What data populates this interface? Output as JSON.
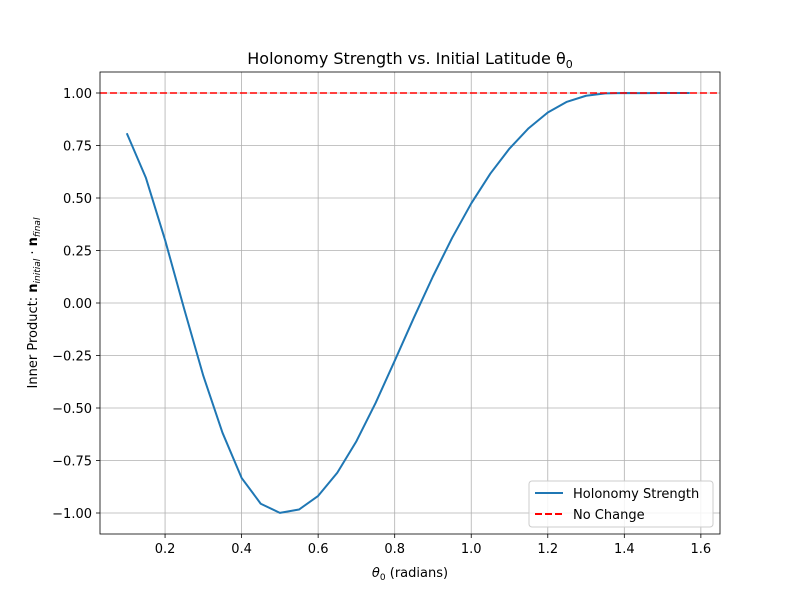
{
  "chart_data": {
    "type": "line",
    "title": {
      "text": "Holonomy Strength vs. Initial Latitude θ",
      "sub": "0"
    },
    "xlabel": {
      "pre": "θ",
      "sub": "0",
      "post": " (radians)"
    },
    "ylabel": {
      "prefix": "Inner Product: ",
      "n1": "n",
      "sub1": "initial",
      "dot": " · ",
      "n2": "n",
      "sub2": "final"
    },
    "xlim": [
      0.03,
      1.65
    ],
    "ylim": [
      -1.1,
      1.1
    ],
    "xticks": [
      0.2,
      0.4,
      0.6,
      0.8,
      1.0,
      1.2,
      1.4,
      1.6
    ],
    "xtick_labels": [
      "0.2",
      "0.4",
      "0.6",
      "0.8",
      "1.0",
      "1.2",
      "1.4",
      "1.6"
    ],
    "yticks": [
      -1.0,
      -0.75,
      -0.5,
      -0.25,
      0.0,
      0.25,
      0.5,
      0.75,
      1.0
    ],
    "ytick_labels": [
      "−1.00",
      "−0.75",
      "−0.50",
      "−0.25",
      "0.00",
      "0.25",
      "0.50",
      "0.75",
      "1.00"
    ],
    "grid": true,
    "legend_position": "lower-right",
    "series": [
      {
        "name": "Holonomy Strength",
        "color": "#1f77b4",
        "style": "solid",
        "x": [
          0.1,
          0.15,
          0.2,
          0.25,
          0.3,
          0.35,
          0.4,
          0.45,
          0.5,
          0.55,
          0.6,
          0.65,
          0.7,
          0.75,
          0.8,
          0.85,
          0.9,
          0.95,
          1.0,
          1.05,
          1.1,
          1.15,
          1.2,
          1.25,
          1.3,
          1.35,
          1.4,
          1.45,
          1.5,
          1.55,
          1.5708
        ],
        "y": [
          0.8085,
          0.5957,
          0.3003,
          -0.0286,
          -0.3469,
          -0.6176,
          -0.8329,
          -0.9558,
          -0.9993,
          -0.9835,
          -0.9186,
          -0.8085,
          -0.6582,
          -0.4764,
          -0.2752,
          -0.0706,
          0.1268,
          0.3098,
          0.4741,
          0.6163,
          0.7355,
          0.8322,
          0.9072,
          0.9581,
          0.9869,
          0.9982,
          0.9999,
          0.9993,
          0.9997,
          1.0,
          1.0
        ]
      },
      {
        "name": "No Change",
        "color": "#ff0000",
        "style": "dashed",
        "hline": 1.0
      }
    ]
  }
}
